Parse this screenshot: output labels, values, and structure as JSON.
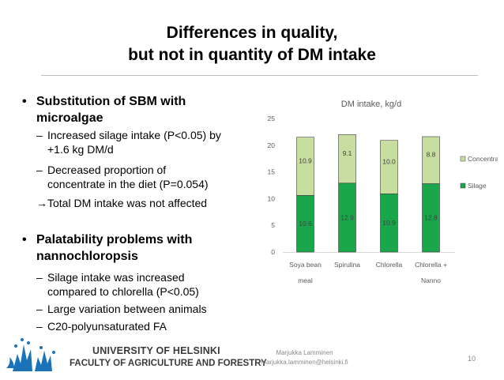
{
  "slide": {
    "title_line1": "Differences in quality,",
    "title_line2": "but not in quantity of DM intake",
    "page_number": "10"
  },
  "bullets": [
    {
      "bullet_char": "•",
      "text_line1": "Substitution of SBM with",
      "text_line2": "microalgae",
      "subitems": [
        {
          "dash": "–",
          "line1": "Increased silage intake (P<0.05) by",
          "line2": "+1.6 kg DM/d"
        },
        {
          "dash": "–",
          "line1": "Decreased proportion of",
          "line2": "concentrate in the diet (P=0.054)"
        },
        {
          "dash": "",
          "line1": "→Total DM intake was not affected",
          "line2": ""
        }
      ]
    },
    {
      "bullet_char": "•",
      "text_line1": "Palatability problems with",
      "text_line2": "nannochloropsis",
      "subitems": [
        {
          "dash": "–",
          "line1": "Silage intake was increased",
          "line2": "compared to chlorella (P<0.05)"
        },
        {
          "dash": "–",
          "line1": "Large variation between animals",
          "line2": ""
        },
        {
          "dash": "–",
          "line1": "C20-polyunsaturated FA",
          "line2": ""
        }
      ]
    }
  ],
  "chart_data": {
    "type": "bar",
    "stacked": true,
    "title": "DM intake, kg/d",
    "categories": [
      [
        "Soya bean",
        "meal"
      ],
      [
        "Spirulina"
      ],
      [
        "Chlorella"
      ],
      [
        "Chlorella +",
        "Nanno"
      ]
    ],
    "series": [
      {
        "name": "Silage",
        "values": [
          10.6,
          12.9,
          10.9,
          12.8
        ],
        "labels": [
          "10.6",
          "12.9",
          "10.9",
          "12.8"
        ],
        "color": "#1aa64a"
      },
      {
        "name": "Concentrate",
        "values": [
          10.9,
          9.1,
          10.0,
          8.8
        ],
        "labels": [
          "10.9",
          "9.1",
          "10.0",
          "8.8"
        ],
        "color": "#c7dea0"
      }
    ],
    "ylim": [
      0,
      25
    ],
    "yticks": [
      "0",
      "5",
      "10",
      "15",
      "20",
      "25"
    ],
    "legend_position": "right",
    "grid": false
  },
  "footer": {
    "author_name": "Marjukka Lamminen",
    "author_email": "marjukka.lamminen@helsinki.fi",
    "university": "UNIVERSITY OF HELSINKI",
    "faculty": "FACULTY OF AGRICULTURE AND FORESTRY",
    "logo_color": "#1a73b8"
  }
}
